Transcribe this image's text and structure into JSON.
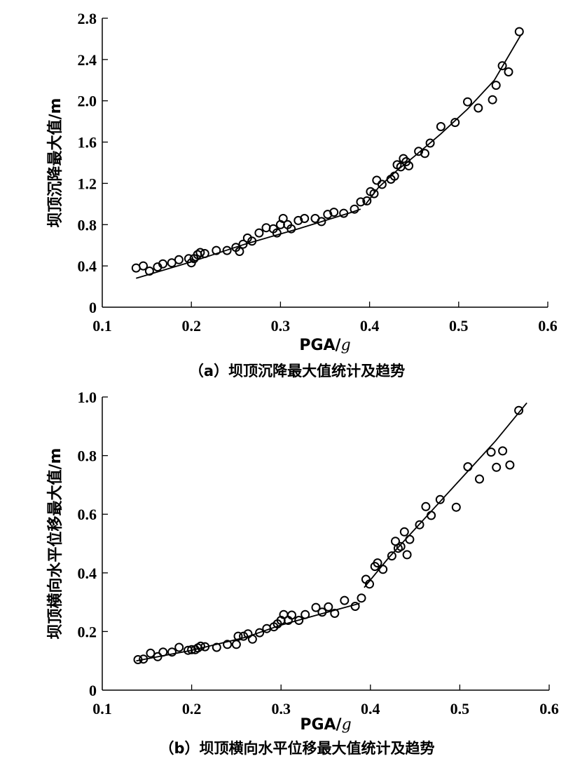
{
  "chart_data": [
    {
      "type": "scatter",
      "caption": "（a）坝顶沉降最大值统计及趋势",
      "xlabel": "PGA/g",
      "ylabel": "坝顶沉降最大值/m",
      "xlim": [
        0.1,
        0.6
      ],
      "ylim": [
        0,
        2.8
      ],
      "x_ticks": [
        "0.1",
        "0.2",
        "0.3",
        "0.4",
        "0.5",
        "0.6"
      ],
      "y_ticks": [
        "0",
        "0.4",
        "0.8",
        "1.2",
        "1.6",
        "2.0",
        "2.4",
        "2.8"
      ],
      "grid": false,
      "points": [
        [
          0.138,
          0.38
        ],
        [
          0.146,
          0.4
        ],
        [
          0.153,
          0.35
        ],
        [
          0.162,
          0.39
        ],
        [
          0.168,
          0.42
        ],
        [
          0.178,
          0.43
        ],
        [
          0.186,
          0.46
        ],
        [
          0.197,
          0.47
        ],
        [
          0.2,
          0.43
        ],
        [
          0.203,
          0.47
        ],
        [
          0.207,
          0.51
        ],
        [
          0.21,
          0.53
        ],
        [
          0.215,
          0.52
        ],
        [
          0.228,
          0.55
        ],
        [
          0.24,
          0.55
        ],
        [
          0.25,
          0.58
        ],
        [
          0.254,
          0.54
        ],
        [
          0.258,
          0.61
        ],
        [
          0.263,
          0.67
        ],
        [
          0.268,
          0.64
        ],
        [
          0.276,
          0.72
        ],
        [
          0.284,
          0.77
        ],
        [
          0.292,
          0.76
        ],
        [
          0.296,
          0.72
        ],
        [
          0.3,
          0.8
        ],
        [
          0.303,
          0.86
        ],
        [
          0.308,
          0.8
        ],
        [
          0.312,
          0.76
        ],
        [
          0.32,
          0.84
        ],
        [
          0.327,
          0.86
        ],
        [
          0.339,
          0.86
        ],
        [
          0.346,
          0.83
        ],
        [
          0.353,
          0.9
        ],
        [
          0.36,
          0.92
        ],
        [
          0.371,
          0.91
        ],
        [
          0.383,
          0.95
        ],
        [
          0.39,
          1.02
        ],
        [
          0.397,
          1.03
        ],
        [
          0.401,
          1.12
        ],
        [
          0.405,
          1.1
        ],
        [
          0.408,
          1.23
        ],
        [
          0.414,
          1.19
        ],
        [
          0.424,
          1.24
        ],
        [
          0.428,
          1.27
        ],
        [
          0.431,
          1.38
        ],
        [
          0.435,
          1.36
        ],
        [
          0.438,
          1.44
        ],
        [
          0.441,
          1.41
        ],
        [
          0.444,
          1.37
        ],
        [
          0.455,
          1.51
        ],
        [
          0.462,
          1.49
        ],
        [
          0.468,
          1.59
        ],
        [
          0.48,
          1.75
        ],
        [
          0.496,
          1.79
        ],
        [
          0.51,
          1.99
        ],
        [
          0.522,
          1.93
        ],
        [
          0.538,
          2.01
        ],
        [
          0.542,
          2.15
        ],
        [
          0.549,
          2.34
        ],
        [
          0.556,
          2.28
        ],
        [
          0.568,
          2.67
        ]
      ],
      "trend_segments": [
        [
          [
            0.138,
            0.28
          ],
          [
            0.2,
            0.44
          ],
          [
            0.26,
            0.61
          ],
          [
            0.32,
            0.76
          ],
          [
            0.38,
            0.92
          ],
          [
            0.39,
            0.95
          ]
        ],
        [
          [
            0.395,
            0.99
          ],
          [
            0.41,
            1.16
          ],
          [
            0.43,
            1.32
          ],
          [
            0.45,
            1.46
          ],
          [
            0.48,
            1.68
          ],
          [
            0.51,
            1.92
          ],
          [
            0.54,
            2.2
          ],
          [
            0.57,
            2.64
          ]
        ]
      ]
    },
    {
      "type": "scatter",
      "caption": "（b）坝顶横向水平位移最大值统计及趋势",
      "xlabel": "PGA/g",
      "ylabel": "坝顶横向水平位移最大值/m",
      "xlim": [
        0.1,
        0.6
      ],
      "ylim": [
        0,
        1.0
      ],
      "x_ticks": [
        "0.1",
        "0.2",
        "0.3",
        "0.4",
        "0.5",
        "0.6"
      ],
      "y_ticks": [
        "0",
        "0.2",
        "0.4",
        "0.6",
        "0.8",
        "1.0"
      ],
      "grid": false,
      "points": [
        [
          0.14,
          0.104
        ],
        [
          0.146,
          0.106
        ],
        [
          0.154,
          0.126
        ],
        [
          0.162,
          0.114
        ],
        [
          0.168,
          0.13
        ],
        [
          0.178,
          0.13
        ],
        [
          0.186,
          0.146
        ],
        [
          0.196,
          0.136
        ],
        [
          0.2,
          0.138
        ],
        [
          0.204,
          0.138
        ],
        [
          0.207,
          0.144
        ],
        [
          0.21,
          0.15
        ],
        [
          0.215,
          0.148
        ],
        [
          0.228,
          0.146
        ],
        [
          0.24,
          0.156
        ],
        [
          0.25,
          0.156
        ],
        [
          0.252,
          0.184
        ],
        [
          0.258,
          0.184
        ],
        [
          0.263,
          0.192
        ],
        [
          0.268,
          0.174
        ],
        [
          0.276,
          0.196
        ],
        [
          0.284,
          0.21
        ],
        [
          0.292,
          0.216
        ],
        [
          0.296,
          0.226
        ],
        [
          0.3,
          0.238
        ],
        [
          0.303,
          0.258
        ],
        [
          0.308,
          0.238
        ],
        [
          0.312,
          0.256
        ],
        [
          0.32,
          0.238
        ],
        [
          0.327,
          0.258
        ],
        [
          0.339,
          0.282
        ],
        [
          0.346,
          0.266
        ],
        [
          0.353,
          0.284
        ],
        [
          0.36,
          0.262
        ],
        [
          0.371,
          0.306
        ],
        [
          0.383,
          0.286
        ],
        [
          0.39,
          0.314
        ],
        [
          0.395,
          0.378
        ],
        [
          0.399,
          0.362
        ],
        [
          0.405,
          0.422
        ],
        [
          0.408,
          0.434
        ],
        [
          0.414,
          0.412
        ],
        [
          0.424,
          0.458
        ],
        [
          0.428,
          0.508
        ],
        [
          0.431,
          0.484
        ],
        [
          0.434,
          0.49
        ],
        [
          0.438,
          0.54
        ],
        [
          0.441,
          0.462
        ],
        [
          0.444,
          0.514
        ],
        [
          0.455,
          0.564
        ],
        [
          0.462,
          0.626
        ],
        [
          0.468,
          0.596
        ],
        [
          0.478,
          0.65
        ],
        [
          0.496,
          0.624
        ],
        [
          0.509,
          0.762
        ],
        [
          0.522,
          0.72
        ],
        [
          0.535,
          0.812
        ],
        [
          0.541,
          0.76
        ],
        [
          0.548,
          0.816
        ],
        [
          0.556,
          0.768
        ],
        [
          0.566,
          0.954
        ]
      ],
      "trend_segments": [
        [
          [
            0.138,
            0.1
          ],
          [
            0.2,
            0.136
          ],
          [
            0.26,
            0.18
          ],
          [
            0.3,
            0.222
          ],
          [
            0.34,
            0.256
          ],
          [
            0.388,
            0.296
          ]
        ],
        [
          [
            0.393,
            0.35
          ],
          [
            0.42,
            0.45
          ],
          [
            0.45,
            0.55
          ],
          [
            0.48,
            0.65
          ],
          [
            0.51,
            0.75
          ],
          [
            0.54,
            0.85
          ],
          [
            0.575,
            0.98
          ]
        ]
      ]
    }
  ]
}
